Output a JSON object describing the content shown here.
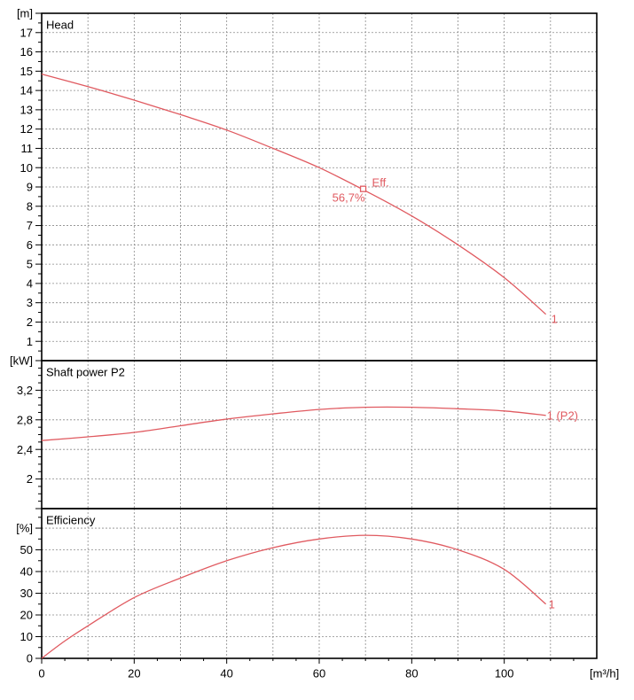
{
  "chart_data": {
    "type": "line",
    "xlabel": "[m³/h]",
    "xlim": [
      0,
      120
    ],
    "xticks": [
      0,
      20,
      40,
      60,
      80,
      100
    ],
    "xtick_labels": [
      "0",
      "20",
      "40",
      "60",
      "80",
      "100"
    ],
    "grid": true,
    "panels": [
      {
        "title": "Head",
        "ylabel": "[m]",
        "ylim": [
          0,
          18
        ],
        "yticks": [
          1,
          2,
          3,
          4,
          5,
          6,
          7,
          8,
          9,
          10,
          11,
          12,
          13,
          14,
          15,
          16,
          17
        ],
        "ytick_labels": [
          "1",
          "2",
          "3",
          "4",
          "5",
          "6",
          "7",
          "8",
          "9",
          "10",
          "11",
          "12",
          "13",
          "14",
          "15",
          "16",
          "17"
        ],
        "series": [
          {
            "name": "1",
            "x": [
              0,
              10,
              20,
              30,
              40,
              50,
              60,
              70,
              80,
              90,
              100,
              109
            ],
            "y": [
              14.85,
              14.2,
              13.5,
              12.75,
              11.95,
              11.0,
              10.0,
              8.8,
              7.5,
              6.0,
              4.3,
              2.4
            ]
          }
        ],
        "annotations": [
          {
            "x": 69.5,
            "y": 8.9,
            "marker": "square",
            "label": "Eff.",
            "value_label": "56,7%"
          }
        ]
      },
      {
        "title": "Shaft power P2",
        "ylabel": "[kW]",
        "ylim": [
          1.6,
          3.6
        ],
        "yticks": [
          2,
          2.4,
          2.8,
          3.2
        ],
        "ytick_labels": [
          "2",
          "2,4",
          "2,8",
          "3,2"
        ],
        "series": [
          {
            "name": "1 (P2)",
            "x": [
              0,
              10,
              20,
              30,
              40,
              50,
              60,
              70,
              80,
              90,
              100,
              109
            ],
            "y": [
              2.52,
              2.57,
              2.63,
              2.72,
              2.81,
              2.88,
              2.94,
              2.97,
              2.97,
              2.95,
              2.92,
              2.86
            ]
          }
        ]
      },
      {
        "title": "Efficiency",
        "ylabel": "[%]",
        "ylim": [
          0,
          69
        ],
        "yticks": [
          0,
          10,
          20,
          30,
          40,
          50
        ],
        "ytick_labels": [
          "0",
          "10",
          "20",
          "30",
          "40",
          "50"
        ],
        "series": [
          {
            "name": "1",
            "x": [
              0,
              5,
              10,
              20,
              30,
              40,
              50,
              60,
              70,
              80,
              90,
              100,
              109
            ],
            "y": [
              0,
              8,
              15,
              28,
              37,
              45,
              51,
              55,
              56.7,
              55,
              50,
              41,
              25
            ]
          }
        ]
      }
    ]
  },
  "colors": {
    "curve": "#e05a60",
    "frame": "#000000",
    "grid": "#8a8a8a"
  }
}
